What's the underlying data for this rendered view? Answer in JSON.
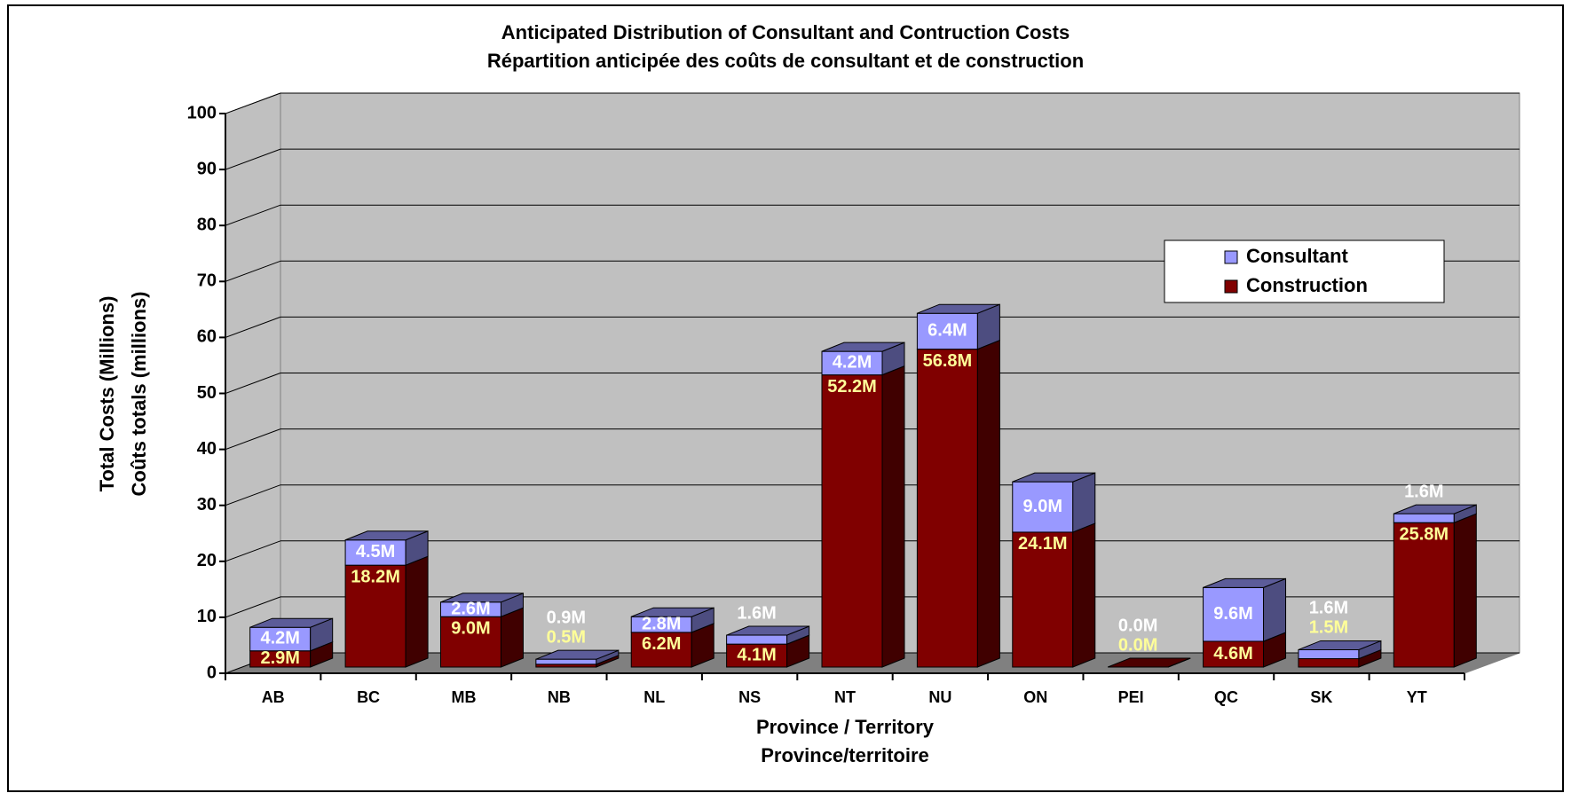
{
  "chart_data": {
    "type": "bar3d_stacked",
    "title": "Anticipated Distribution of Consultant and Contruction Costs",
    "subtitle": "Répartition anticipée des coûts de consultant et de construction",
    "ylabel": [
      "Total Costs (Millions)",
      "Coûts totals (millions)"
    ],
    "xlabel": [
      "Province / Territory",
      "Province/territoire"
    ],
    "categories": [
      "AB",
      "BC",
      "MB",
      "NB",
      "NL",
      "NS",
      "NT",
      "NU",
      "ON",
      "PEI",
      "QC",
      "SK",
      "YT"
    ],
    "series": [
      {
        "name": "Construction",
        "color": "#800000",
        "label_color": "#ffff99",
        "values": [
          2.9,
          18.2,
          9.0,
          0.5,
          6.2,
          4.1,
          52.2,
          56.8,
          24.1,
          0.0,
          4.6,
          1.5,
          25.8
        ],
        "value_labels": [
          "2.9M",
          "18.2M",
          "9.0M",
          "0.5M",
          "6.2M",
          "4.1M",
          "52.2M",
          "56.8M",
          "24.1M",
          "0.0M",
          "4.6M",
          "1.5M",
          "25.8M"
        ]
      },
      {
        "name": "Consultant",
        "color": "#9999ff",
        "label_color": "#ffffff",
        "values": [
          4.2,
          4.5,
          2.6,
          0.9,
          2.8,
          1.6,
          4.2,
          6.4,
          9.0,
          0.0,
          9.6,
          1.6,
          1.6
        ],
        "value_labels": [
          "4.2M",
          "4.5M",
          "2.6M",
          "0.9M",
          "2.8M",
          "1.6M",
          "4.2M",
          "6.4M",
          "9.0M",
          "0.0M",
          "9.6M",
          "1.6M",
          "1.6M"
        ]
      }
    ],
    "ylim": [
      0,
      100
    ],
    "yticks": [
      0,
      10,
      20,
      30,
      40,
      50,
      60,
      70,
      80,
      90,
      100
    ],
    "grid": true
  }
}
